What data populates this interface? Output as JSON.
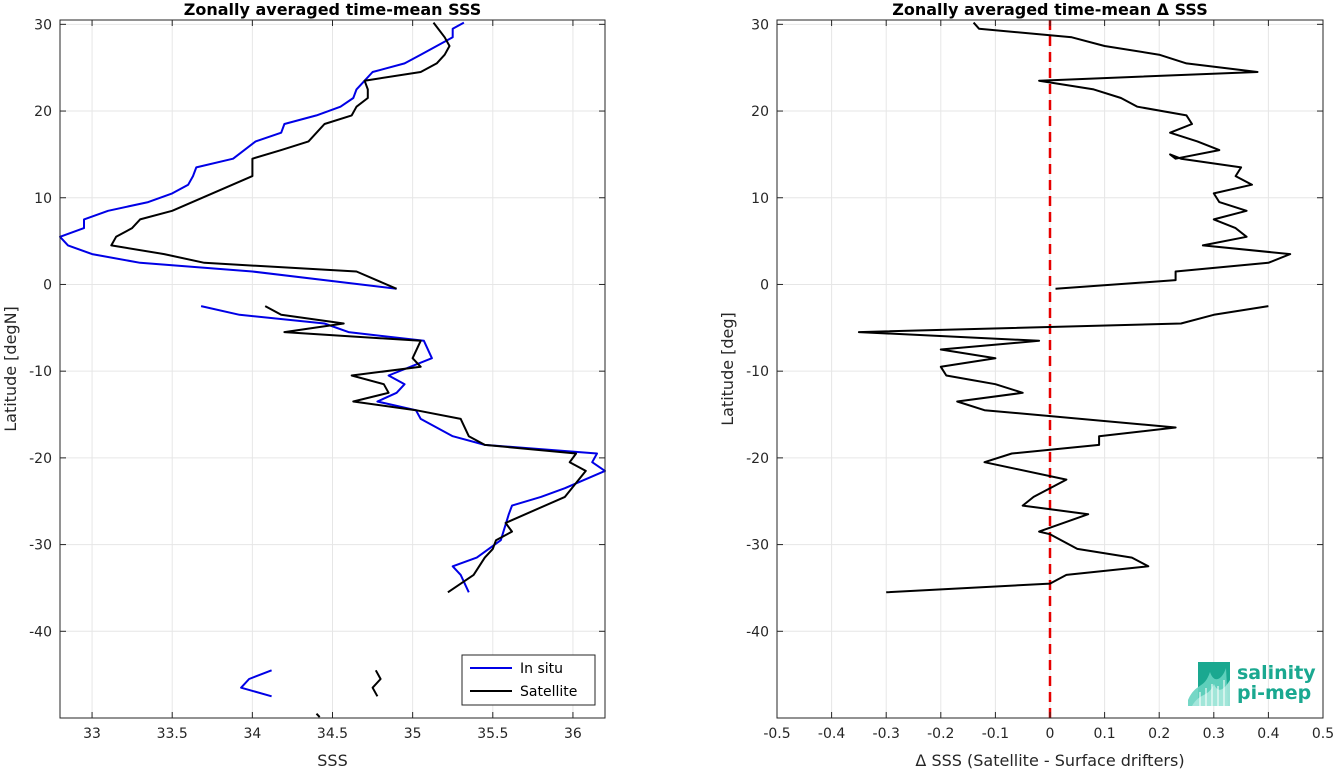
{
  "chart_data": [
    {
      "type": "line",
      "title": "Zonally averaged time-mean SSS",
      "xlabel": "SSS",
      "ylabel": "Latitude [degN]",
      "xlim": [
        32.8,
        36.2
      ],
      "ylim": [
        -50,
        30.5
      ],
      "xticks": [
        33,
        33.5,
        34,
        34.5,
        35,
        35.5,
        36
      ],
      "yticks": [
        -40,
        -30,
        -20,
        -10,
        0,
        10,
        20,
        30
      ],
      "grid": true,
      "legend": "bottom-right",
      "series": [
        {
          "name": "In situ",
          "color": "#0000e6",
          "segments": [
            [
              [
                35.32,
                30.2
              ],
              [
                35.25,
                29.5
              ],
              [
                35.25,
                28.5
              ],
              [
                35.15,
                27.5
              ],
              [
                35.05,
                26.5
              ],
              [
                34.95,
                25.5
              ],
              [
                34.75,
                24.5
              ],
              [
                34.7,
                23.5
              ],
              [
                34.65,
                22.5
              ],
              [
                34.63,
                21.5
              ],
              [
                34.55,
                20.5
              ],
              [
                34.4,
                19.5
              ],
              [
                34.2,
                18.5
              ],
              [
                34.18,
                17.5
              ],
              [
                34.02,
                16.5
              ],
              [
                33.88,
                14.5
              ],
              [
                33.65,
                13.5
              ],
              [
                33.63,
                12.5
              ],
              [
                33.6,
                11.5
              ],
              [
                33.5,
                10.5
              ],
              [
                33.35,
                9.5
              ],
              [
                33.1,
                8.5
              ],
              [
                32.95,
                7.5
              ],
              [
                32.95,
                6.5
              ],
              [
                32.8,
                5.5
              ],
              [
                32.85,
                4.5
              ],
              [
                33.0,
                3.5
              ],
              [
                33.3,
                2.5
              ],
              [
                34.0,
                1.5
              ],
              [
                34.9,
                -0.5
              ]
            ],
            [
              [
                33.68,
                -2.5
              ],
              [
                33.92,
                -3.5
              ],
              [
                34.45,
                -4.5
              ],
              [
                34.6,
                -5.5
              ],
              [
                35.07,
                -6.5
              ],
              [
                35.12,
                -8.5
              ],
              [
                34.85,
                -10.5
              ],
              [
                34.95,
                -11.5
              ],
              [
                34.9,
                -12.5
              ],
              [
                34.78,
                -13.5
              ],
              [
                35.02,
                -14.5
              ],
              [
                35.05,
                -15.5
              ],
              [
                35.25,
                -17.5
              ],
              [
                35.45,
                -18.5
              ],
              [
                36.15,
                -19.5
              ],
              [
                36.12,
                -20.5
              ],
              [
                36.2,
                -21.5
              ],
              [
                35.95,
                -23.5
              ],
              [
                35.8,
                -24.5
              ],
              [
                35.62,
                -25.5
              ],
              [
                35.6,
                -26.5
              ],
              [
                35.55,
                -29.5
              ],
              [
                35.4,
                -31.5
              ],
              [
                35.25,
                -32.5
              ],
              [
                35.3,
                -33.5
              ],
              [
                35.35,
                -35.5
              ]
            ],
            [
              [
                34.12,
                -44.5
              ],
              [
                33.98,
                -45.5
              ],
              [
                33.93,
                -46.5
              ],
              [
                34.12,
                -47.5
              ]
            ]
          ]
        },
        {
          "name": "Satellite",
          "color": "#000000",
          "segments": [
            [
              [
                35.13,
                30.2
              ],
              [
                35.2,
                28.5
              ],
              [
                35.23,
                27.5
              ],
              [
                35.2,
                26.5
              ],
              [
                35.15,
                25.5
              ],
              [
                35.05,
                24.5
              ],
              [
                34.7,
                23.5
              ],
              [
                34.72,
                22.5
              ],
              [
                34.72,
                21.5
              ],
              [
                34.65,
                20.5
              ],
              [
                34.62,
                19.5
              ],
              [
                34.45,
                18.5
              ],
              [
                34.35,
                16.5
              ],
              [
                34.18,
                15.5
              ],
              [
                34.0,
                14.5
              ],
              [
                34.0,
                12.5
              ],
              [
                33.75,
                10.5
              ],
              [
                33.5,
                8.5
              ],
              [
                33.3,
                7.5
              ],
              [
                33.25,
                6.5
              ],
              [
                33.15,
                5.5
              ],
              [
                33.12,
                4.5
              ],
              [
                33.45,
                3.5
              ],
              [
                33.7,
                2.5
              ],
              [
                34.65,
                1.5
              ],
              [
                34.9,
                -0.5
              ]
            ],
            [
              [
                34.08,
                -2.5
              ],
              [
                34.18,
                -3.5
              ],
              [
                34.57,
                -4.5
              ],
              [
                34.2,
                -5.5
              ],
              [
                35.05,
                -6.5
              ],
              [
                35.0,
                -8.5
              ],
              [
                35.05,
                -9.5
              ],
              [
                34.62,
                -10.5
              ],
              [
                34.82,
                -11.5
              ],
              [
                34.85,
                -12.5
              ],
              [
                34.63,
                -13.5
              ],
              [
                35.02,
                -14.5
              ],
              [
                35.3,
                -15.5
              ],
              [
                35.35,
                -17.5
              ],
              [
                35.45,
                -18.5
              ],
              [
                36.02,
                -19.5
              ],
              [
                35.98,
                -20.5
              ],
              [
                36.08,
                -21.5
              ],
              [
                35.95,
                -24.5
              ],
              [
                35.58,
                -27.5
              ],
              [
                35.62,
                -28.5
              ],
              [
                35.52,
                -29.5
              ],
              [
                35.5,
                -30.5
              ],
              [
                35.45,
                -31.5
              ],
              [
                35.38,
                -33.5
              ],
              [
                35.22,
                -35.5
              ]
            ],
            [
              [
                34.77,
                -44.5
              ],
              [
                34.8,
                -45.5
              ],
              [
                34.75,
                -46.5
              ],
              [
                34.78,
                -47.5
              ]
            ],
            [
              [
                34.4,
                -49.5
              ],
              [
                34.42,
                -49.9
              ]
            ]
          ]
        }
      ]
    },
    {
      "type": "line",
      "title": "Zonally averaged time-mean Δ SSS",
      "xlabel": "Δ SSS (Satellite - Surface drifters)",
      "ylabel": "Latitude [deg]",
      "xlim": [
        -0.5,
        0.5
      ],
      "ylim": [
        -50,
        30.5
      ],
      "xticks": [
        -0.5,
        -0.4,
        -0.3,
        -0.2,
        -0.1,
        0,
        0.1,
        0.2,
        0.3,
        0.4,
        0.5
      ],
      "yticks": [
        -40,
        -30,
        -20,
        -10,
        0,
        10,
        20,
        30
      ],
      "grid": true,
      "reference_line": {
        "x": 0,
        "color": "#e60000",
        "style": "dashed"
      },
      "series": [
        {
          "color": "#000000",
          "segments": [
            [
              [
                -0.14,
                30.2
              ],
              [
                -0.13,
                29.5
              ],
              [
                0.04,
                28.5
              ],
              [
                0.1,
                27.5
              ],
              [
                0.2,
                26.5
              ],
              [
                0.25,
                25.5
              ],
              [
                0.38,
                24.5
              ],
              [
                -0.02,
                23.5
              ],
              [
                0.08,
                22.5
              ],
              [
                0.13,
                21.5
              ],
              [
                0.16,
                20.5
              ],
              [
                0.25,
                19.5
              ],
              [
                0.26,
                18.5
              ],
              [
                0.22,
                17.5
              ],
              [
                0.27,
                16.5
              ],
              [
                0.31,
                15.5
              ],
              [
                0.23,
                14.5
              ],
              [
                0.22,
                15.0
              ],
              [
                0.24,
                14.5
              ],
              [
                0.35,
                13.5
              ],
              [
                0.34,
                12.5
              ],
              [
                0.37,
                11.5
              ],
              [
                0.3,
                10.5
              ],
              [
                0.31,
                9.5
              ],
              [
                0.36,
                8.5
              ],
              [
                0.3,
                7.5
              ],
              [
                0.34,
                6.5
              ],
              [
                0.36,
                5.5
              ],
              [
                0.28,
                4.5
              ],
              [
                0.44,
                3.5
              ],
              [
                0.4,
                2.5
              ],
              [
                0.23,
                1.5
              ],
              [
                0.23,
                0.5
              ],
              [
                0.01,
                -0.5
              ]
            ],
            [
              [
                0.4,
                -2.5
              ],
              [
                0.3,
                -3.5
              ],
              [
                0.24,
                -4.5
              ],
              [
                -0.35,
                -5.5
              ],
              [
                -0.02,
                -6.5
              ],
              [
                -0.2,
                -7.5
              ],
              [
                -0.1,
                -8.5
              ],
              [
                -0.2,
                -9.5
              ],
              [
                -0.19,
                -10.5
              ],
              [
                -0.1,
                -11.5
              ],
              [
                -0.05,
                -12.5
              ],
              [
                -0.17,
                -13.5
              ],
              [
                -0.12,
                -14.5
              ],
              [
                0.23,
                -16.5
              ],
              [
                0.09,
                -17.5
              ],
              [
                0.09,
                -18.5
              ],
              [
                -0.07,
                -19.5
              ],
              [
                -0.12,
                -20.5
              ],
              [
                0.03,
                -22.5
              ],
              [
                -0.03,
                -24.5
              ],
              [
                -0.05,
                -25.5
              ],
              [
                0.07,
                -26.5
              ],
              [
                -0.02,
                -28.5
              ],
              [
                0.0,
                -28.8
              ],
              [
                0.05,
                -30.5
              ],
              [
                0.15,
                -31.5
              ],
              [
                0.18,
                -32.5
              ],
              [
                0.03,
                -33.5
              ],
              [
                0.0,
                -34.5
              ],
              [
                -0.3,
                -35.5
              ]
            ]
          ]
        }
      ]
    }
  ],
  "logo": {
    "line1": "salinity",
    "line2": "pi-mep",
    "color": "#1aa890"
  }
}
